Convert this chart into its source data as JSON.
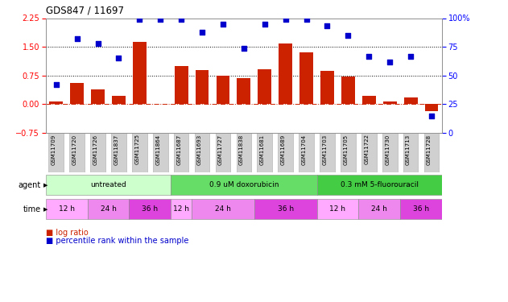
{
  "title": "GDS847 / 11697",
  "samples": [
    "GSM11709",
    "GSM11720",
    "GSM11726",
    "GSM11837",
    "GSM11725",
    "GSM11864",
    "GSM11687",
    "GSM11693",
    "GSM11727",
    "GSM11838",
    "GSM11681",
    "GSM11689",
    "GSM11704",
    "GSM11703",
    "GSM11705",
    "GSM11722",
    "GSM11730",
    "GSM11713",
    "GSM11728"
  ],
  "log_ratio": [
    0.07,
    0.55,
    0.38,
    0.22,
    1.62,
    0.0,
    1.0,
    0.9,
    0.75,
    0.68,
    0.92,
    1.58,
    1.35,
    0.88,
    0.72,
    0.22,
    0.08,
    0.18,
    -0.18
  ],
  "percentile": [
    42,
    82,
    78,
    65,
    99,
    99,
    99,
    88,
    95,
    74,
    95,
    99,
    99,
    93,
    85,
    67,
    62,
    67,
    15
  ],
  "ylim_left": [
    -0.75,
    2.25
  ],
  "ylim_right": [
    0,
    100
  ],
  "yticks_left": [
    -0.75,
    0,
    0.75,
    1.5,
    2.25
  ],
  "yticks_right": [
    0,
    25,
    50,
    75,
    100
  ],
  "hlines": [
    0.75,
    1.5
  ],
  "bar_color": "#cc2200",
  "scatter_color": "#0000cc",
  "zero_line_color": "#cc2200",
  "agent_groups": [
    {
      "label": "untreated",
      "start": 0,
      "end": 6,
      "color": "#ccffcc"
    },
    {
      "label": "0.9 uM doxorubicin",
      "start": 6,
      "end": 13,
      "color": "#66dd66"
    },
    {
      "label": "0.3 mM 5-fluorouracil",
      "start": 13,
      "end": 19,
      "color": "#44cc44"
    }
  ],
  "time_groups": [
    {
      "label": "12 h",
      "start": 0,
      "end": 2,
      "color": "#ffaaff"
    },
    {
      "label": "24 h",
      "start": 2,
      "end": 4,
      "color": "#ee88ee"
    },
    {
      "label": "36 h",
      "start": 4,
      "end": 6,
      "color": "#dd44dd"
    },
    {
      "label": "12 h",
      "start": 6,
      "end": 7,
      "color": "#ffaaff"
    },
    {
      "label": "24 h",
      "start": 7,
      "end": 10,
      "color": "#ee88ee"
    },
    {
      "label": "36 h",
      "start": 10,
      "end": 13,
      "color": "#dd44dd"
    },
    {
      "label": "12 h",
      "start": 13,
      "end": 15,
      "color": "#ffaaff"
    },
    {
      "label": "24 h",
      "start": 15,
      "end": 17,
      "color": "#ee88ee"
    },
    {
      "label": "36 h",
      "start": 17,
      "end": 19,
      "color": "#dd44dd"
    }
  ],
  "tick_bg_color": "#d0d0d0",
  "legend_bar": "log ratio",
  "legend_pct": "percentile rank within the sample"
}
